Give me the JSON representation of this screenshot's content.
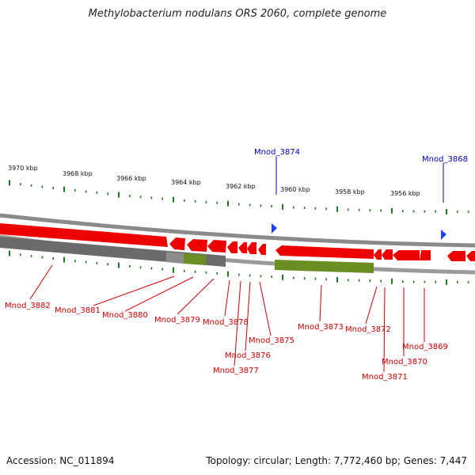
{
  "title": "Methylobacterium nodulans ORS 2060, complete genome",
  "accession": "Accession: NC_011894",
  "summary": "Topology: circular; Length: 7,772,460 bp; Genes: 7,447",
  "colors": {
    "gene_label": "#cc0000",
    "feature_label": "#0000bb",
    "tick": "#1f7a1f",
    "gene_block": "#ee0000",
    "gray_block": "#6b6b6b",
    "olive_block": "#6b8e23"
  },
  "kbp_ticks": [
    "3970 kbp",
    "3968 kbp",
    "3966 kbp",
    "3964 kbp",
    "3962 kbp",
    "3960 kbp",
    "3958 kbp",
    "3956 kbp"
  ],
  "features": [
    "Mnod_3874",
    "Mnod_3868"
  ],
  "genes": [
    "Mnod_3882",
    "Mnod_3881",
    "Mnod_3880",
    "Mnod_3879",
    "Mnod_3878",
    "Mnod_3877",
    "Mnod_3876",
    "Mnod_3875",
    "Mnod_3873",
    "Mnod_3872",
    "Mnod_3871",
    "Mnod_3870",
    "Mnod_3869"
  ]
}
